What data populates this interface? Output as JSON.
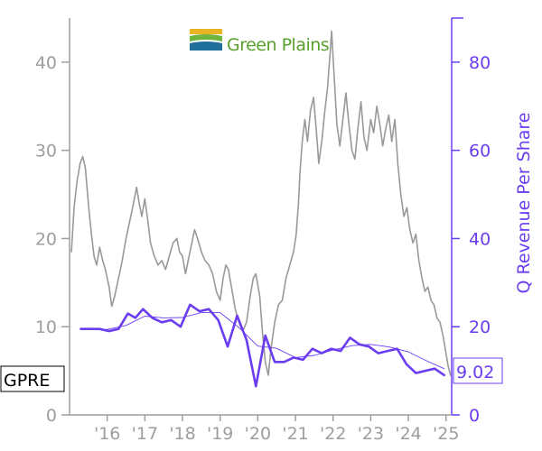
{
  "logo": {
    "name": "Green Plains"
  },
  "ticker": "GPRE",
  "colors": {
    "price": "#999999",
    "revenue": "#6a3df0",
    "axis": "#9e9e9e",
    "logo_green": "#5aa02c",
    "logo_yellow": "#e8b422"
  },
  "chart_data": {
    "type": "line",
    "title": "",
    "xlabel": "",
    "ylabel_left": "",
    "ylabel_right": "Q Revenue Per Share",
    "x_ticks": [
      "'16",
      "'17",
      "'18",
      "'19",
      "'20",
      "'21",
      "'22",
      "'23",
      "'24",
      "'25"
    ],
    "x_range": [
      2015.0,
      2025.15
    ],
    "y_left_ticks": [
      0,
      10,
      20,
      30,
      40
    ],
    "y_left_range": [
      0,
      45
    ],
    "y_right_ticks": [
      0,
      20,
      40,
      60,
      80
    ],
    "y_right_range": [
      0,
      90
    ],
    "grid": false,
    "last_value_label": "9.02",
    "series": [
      {
        "axis": "left",
        "points": [
          [
            2015.05,
            18.5
          ],
          [
            2015.12,
            23.5
          ],
          [
            2015.2,
            26.5
          ],
          [
            2015.28,
            28.5
          ],
          [
            2015.35,
            29.3
          ],
          [
            2015.42,
            28.0
          ],
          [
            2015.5,
            24.0
          ],
          [
            2015.58,
            20.5
          ],
          [
            2015.65,
            18.0
          ],
          [
            2015.72,
            17.0
          ],
          [
            2015.8,
            19.0
          ],
          [
            2015.88,
            17.5
          ],
          [
            2015.95,
            16.5
          ],
          [
            2016.05,
            14.5
          ],
          [
            2016.12,
            12.3
          ],
          [
            2016.2,
            13.5
          ],
          [
            2016.3,
            15.5
          ],
          [
            2016.4,
            17.5
          ],
          [
            2016.5,
            20.0
          ],
          [
            2016.6,
            22.0
          ],
          [
            2016.7,
            24.0
          ],
          [
            2016.78,
            25.8
          ],
          [
            2016.85,
            24.0
          ],
          [
            2016.92,
            22.5
          ],
          [
            2017.0,
            24.5
          ],
          [
            2017.08,
            22.0
          ],
          [
            2017.15,
            19.5
          ],
          [
            2017.25,
            18.0
          ],
          [
            2017.35,
            17.0
          ],
          [
            2017.45,
            17.5
          ],
          [
            2017.55,
            16.5
          ],
          [
            2017.65,
            18.0
          ],
          [
            2017.75,
            19.5
          ],
          [
            2017.85,
            20.0
          ],
          [
            2017.92,
            18.5
          ],
          [
            2018.0,
            18.0
          ],
          [
            2018.08,
            16.0
          ],
          [
            2018.15,
            17.5
          ],
          [
            2018.25,
            19.5
          ],
          [
            2018.32,
            21.0
          ],
          [
            2018.4,
            20.0
          ],
          [
            2018.5,
            18.5
          ],
          [
            2018.6,
            17.5
          ],
          [
            2018.7,
            17.0
          ],
          [
            2018.8,
            16.0
          ],
          [
            2018.9,
            14.0
          ],
          [
            2019.0,
            13.0
          ],
          [
            2019.08,
            15.5
          ],
          [
            2019.15,
            17.0
          ],
          [
            2019.22,
            16.5
          ],
          [
            2019.3,
            14.5
          ],
          [
            2019.4,
            12.0
          ],
          [
            2019.5,
            10.5
          ],
          [
            2019.6,
            9.5
          ],
          [
            2019.7,
            10.5
          ],
          [
            2019.8,
            13.5
          ],
          [
            2019.88,
            15.5
          ],
          [
            2019.95,
            16.0
          ],
          [
            2020.05,
            13.5
          ],
          [
            2020.12,
            9.5
          ],
          [
            2020.2,
            6.0
          ],
          [
            2020.28,
            4.5
          ],
          [
            2020.35,
            7.5
          ],
          [
            2020.45,
            10.5
          ],
          [
            2020.55,
            12.5
          ],
          [
            2020.65,
            13.0
          ],
          [
            2020.75,
            15.5
          ],
          [
            2020.85,
            17.0
          ],
          [
            2020.95,
            18.5
          ],
          [
            2021.02,
            20.5
          ],
          [
            2021.08,
            24.0
          ],
          [
            2021.12,
            27.5
          ],
          [
            2021.18,
            31.0
          ],
          [
            2021.25,
            33.5
          ],
          [
            2021.32,
            31.0
          ],
          [
            2021.4,
            34.5
          ],
          [
            2021.48,
            36.0
          ],
          [
            2021.55,
            32.5
          ],
          [
            2021.62,
            28.5
          ],
          [
            2021.7,
            31.0
          ],
          [
            2021.78,
            34.5
          ],
          [
            2021.85,
            37.0
          ],
          [
            2021.92,
            41.0
          ],
          [
            2021.96,
            43.5
          ],
          [
            2022.02,
            39.0
          ],
          [
            2022.1,
            33.0
          ],
          [
            2022.18,
            30.5
          ],
          [
            2022.26,
            33.5
          ],
          [
            2022.34,
            36.5
          ],
          [
            2022.42,
            33.0
          ],
          [
            2022.5,
            30.0
          ],
          [
            2022.58,
            29.0
          ],
          [
            2022.66,
            32.5
          ],
          [
            2022.74,
            35.5
          ],
          [
            2022.82,
            31.5
          ],
          [
            2022.9,
            30.0
          ],
          [
            2023.0,
            33.5
          ],
          [
            2023.08,
            32.0
          ],
          [
            2023.16,
            35.0
          ],
          [
            2023.24,
            33.0
          ],
          [
            2023.32,
            30.5
          ],
          [
            2023.4,
            32.5
          ],
          [
            2023.48,
            34.0
          ],
          [
            2023.56,
            31.0
          ],
          [
            2023.64,
            33.5
          ],
          [
            2023.72,
            28.5
          ],
          [
            2023.8,
            25.0
          ],
          [
            2023.88,
            22.5
          ],
          [
            2023.96,
            23.5
          ],
          [
            2024.04,
            21.0
          ],
          [
            2024.12,
            19.5
          ],
          [
            2024.2,
            20.5
          ],
          [
            2024.28,
            17.5
          ],
          [
            2024.36,
            15.5
          ],
          [
            2024.44,
            14.0
          ],
          [
            2024.52,
            14.5
          ],
          [
            2024.6,
            13.0
          ],
          [
            2024.68,
            12.5
          ],
          [
            2024.76,
            11.0
          ],
          [
            2024.84,
            10.5
          ],
          [
            2024.92,
            9.0
          ],
          [
            2025.0,
            7.0
          ],
          [
            2025.06,
            5.5
          ],
          [
            2025.12,
            4.5
          ]
        ]
      },
      {
        "axis": "right",
        "points": [
          [
            2015.3,
            19.5
          ],
          [
            2015.55,
            19.5
          ],
          [
            2015.8,
            19.5
          ],
          [
            2016.05,
            19.0
          ],
          [
            2016.3,
            19.5
          ],
          [
            2016.55,
            23.0
          ],
          [
            2016.75,
            22.0
          ],
          [
            2016.95,
            24.0
          ],
          [
            2017.2,
            22.0
          ],
          [
            2017.45,
            21.0
          ],
          [
            2017.7,
            21.5
          ],
          [
            2017.95,
            20.0
          ],
          [
            2018.2,
            25.0
          ],
          [
            2018.45,
            23.5
          ],
          [
            2018.7,
            24.0
          ],
          [
            2018.95,
            21.5
          ],
          [
            2019.2,
            15.5
          ],
          [
            2019.45,
            22.5
          ],
          [
            2019.7,
            17.0
          ],
          [
            2019.95,
            6.5
          ],
          [
            2020.2,
            18.0
          ],
          [
            2020.45,
            12.0
          ],
          [
            2020.7,
            12.0
          ],
          [
            2020.95,
            13.0
          ],
          [
            2021.2,
            12.5
          ],
          [
            2021.45,
            15.0
          ],
          [
            2021.7,
            14.0
          ],
          [
            2021.95,
            15.0
          ],
          [
            2022.2,
            14.5
          ],
          [
            2022.45,
            17.5
          ],
          [
            2022.7,
            16.0
          ],
          [
            2022.95,
            15.5
          ],
          [
            2023.2,
            14.0
          ],
          [
            2023.45,
            14.5
          ],
          [
            2023.7,
            15.0
          ],
          [
            2023.95,
            11.5
          ],
          [
            2024.2,
            9.5
          ],
          [
            2024.45,
            10.0
          ],
          [
            2024.7,
            10.5
          ],
          [
            2024.95,
            9.02
          ]
        ]
      },
      {
        "axis": "right",
        "points": [
          [
            2015.3,
            19.5
          ],
          [
            2016.0,
            19.4
          ],
          [
            2016.5,
            20.3
          ],
          [
            2017.0,
            22.4
          ],
          [
            2017.5,
            22.0
          ],
          [
            2018.0,
            22.1
          ],
          [
            2018.5,
            23.2
          ],
          [
            2019.0,
            23.2
          ],
          [
            2019.5,
            19.8
          ],
          [
            2020.0,
            15.6
          ],
          [
            2020.5,
            15.1
          ],
          [
            2021.0,
            13.0
          ],
          [
            2021.5,
            13.5
          ],
          [
            2022.0,
            14.7
          ],
          [
            2022.5,
            15.7
          ],
          [
            2023.0,
            16.0
          ],
          [
            2023.5,
            15.4
          ],
          [
            2024.0,
            14.3
          ],
          [
            2024.5,
            12.2
          ],
          [
            2024.95,
            10.5
          ]
        ]
      }
    ]
  }
}
